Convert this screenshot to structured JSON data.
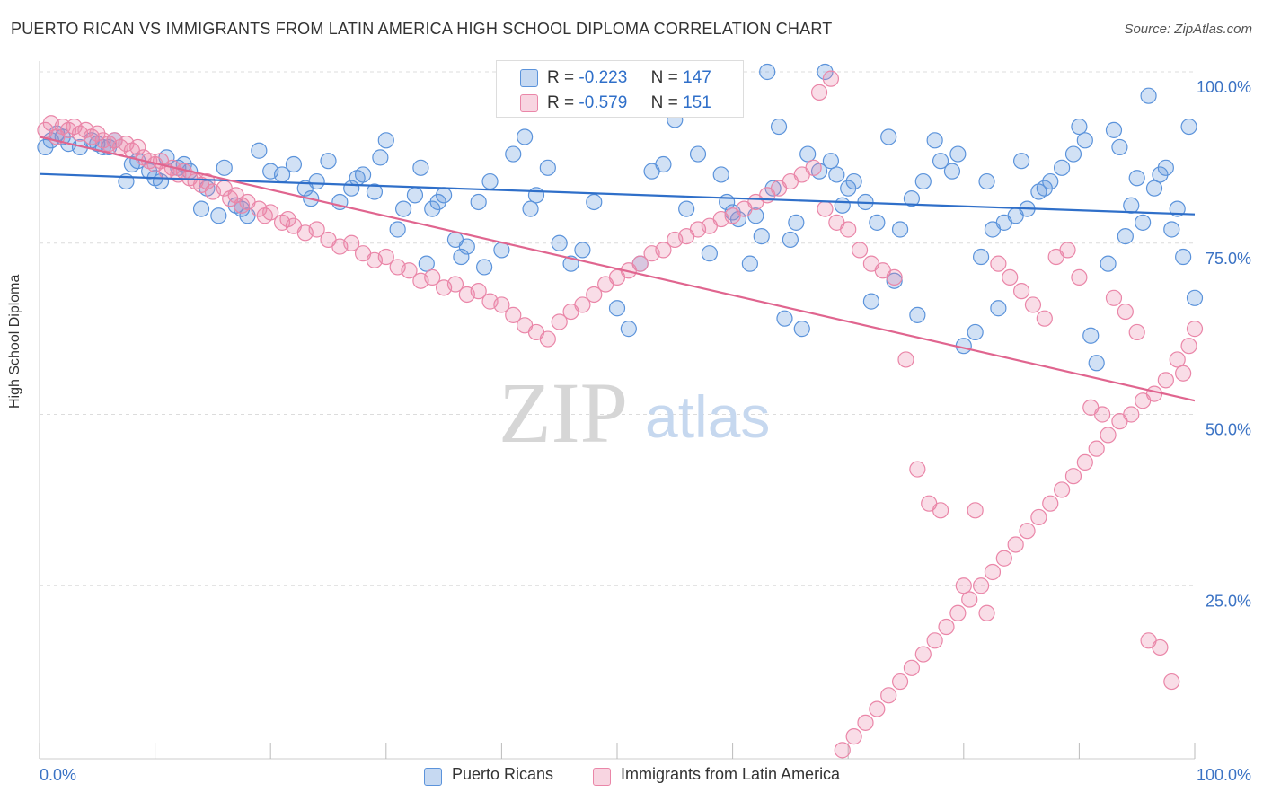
{
  "title": "PUERTO RICAN VS IMMIGRANTS FROM LATIN AMERICA HIGH SCHOOL DIPLOMA CORRELATION CHART",
  "source": "Source: ZipAtlas.com",
  "watermark_zip": "ZIP",
  "watermark_atlas": "atlas",
  "legend": {
    "r_label": "R =",
    "n_label": "N =",
    "blue_r": "-0.223",
    "blue_n": "147",
    "pink_r": "-0.579",
    "pink_n": "151"
  },
  "colors": {
    "blue": "#5b93db",
    "blue_line": "#2f6fc9",
    "pink": "#ea86a8",
    "pink_line": "#e0658f",
    "axis_text": "#3a72c4"
  },
  "chart_data": {
    "type": "scatter",
    "xlabel": "",
    "ylabel": "High School Diploma",
    "x_tick_left": "0.0%",
    "x_tick_right": "100.0%",
    "y_ticks": [
      "100.0%",
      "75.0%",
      "50.0%",
      "25.0%"
    ],
    "xlim": [
      0,
      1
    ],
    "ylim": [
      0,
      1
    ],
    "series": [
      {
        "name": "Puerto Ricans",
        "trend": [
          [
            0,
            0.851
          ],
          [
            1,
            0.792
          ]
        ],
        "points": [
          [
            0.005,
            0.89
          ],
          [
            0.01,
            0.9
          ],
          [
            0.015,
            0.91
          ],
          [
            0.02,
            0.905
          ],
          [
            0.025,
            0.895
          ],
          [
            0.035,
            0.89
          ],
          [
            0.045,
            0.9
          ],
          [
            0.05,
            0.895
          ],
          [
            0.055,
            0.89
          ],
          [
            0.06,
            0.89
          ],
          [
            0.065,
            0.9
          ],
          [
            0.075,
            0.84
          ],
          [
            0.08,
            0.865
          ],
          [
            0.085,
            0.87
          ],
          [
            0.095,
            0.855
          ],
          [
            0.1,
            0.845
          ],
          [
            0.105,
            0.84
          ],
          [
            0.11,
            0.875
          ],
          [
            0.12,
            0.86
          ],
          [
            0.125,
            0.865
          ],
          [
            0.13,
            0.855
          ],
          [
            0.14,
            0.8
          ],
          [
            0.145,
            0.83
          ],
          [
            0.155,
            0.79
          ],
          [
            0.16,
            0.86
          ],
          [
            0.17,
            0.805
          ],
          [
            0.175,
            0.8
          ],
          [
            0.18,
            0.79
          ],
          [
            0.19,
            0.885
          ],
          [
            0.2,
            0.855
          ],
          [
            0.21,
            0.85
          ],
          [
            0.22,
            0.865
          ],
          [
            0.23,
            0.83
          ],
          [
            0.235,
            0.815
          ],
          [
            0.24,
            0.84
          ],
          [
            0.25,
            0.87
          ],
          [
            0.26,
            0.81
          ],
          [
            0.27,
            0.83
          ],
          [
            0.275,
            0.845
          ],
          [
            0.28,
            0.85
          ],
          [
            0.29,
            0.825
          ],
          [
            0.295,
            0.875
          ],
          [
            0.3,
            0.9
          ],
          [
            0.31,
            0.77
          ],
          [
            0.315,
            0.8
          ],
          [
            0.325,
            0.82
          ],
          [
            0.33,
            0.86
          ],
          [
            0.335,
            0.72
          ],
          [
            0.34,
            0.8
          ],
          [
            0.345,
            0.81
          ],
          [
            0.35,
            0.82
          ],
          [
            0.36,
            0.755
          ],
          [
            0.365,
            0.73
          ],
          [
            0.37,
            0.745
          ],
          [
            0.38,
            0.81
          ],
          [
            0.385,
            0.715
          ],
          [
            0.39,
            0.84
          ],
          [
            0.4,
            0.74
          ],
          [
            0.41,
            0.88
          ],
          [
            0.42,
            0.905
          ],
          [
            0.425,
            0.8
          ],
          [
            0.43,
            0.82
          ],
          [
            0.44,
            0.86
          ],
          [
            0.445,
            1.0
          ],
          [
            0.45,
            0.75
          ],
          [
            0.46,
            0.72
          ],
          [
            0.47,
            0.74
          ],
          [
            0.48,
            0.81
          ],
          [
            0.5,
            0.655
          ],
          [
            0.51,
            0.625
          ],
          [
            0.52,
            0.72
          ],
          [
            0.53,
            0.855
          ],
          [
            0.54,
            0.865
          ],
          [
            0.55,
            0.93
          ],
          [
            0.56,
            0.8
          ],
          [
            0.57,
            0.88
          ],
          [
            0.58,
            0.735
          ],
          [
            0.59,
            0.85
          ],
          [
            0.6,
            0.795
          ],
          [
            0.62,
            0.79
          ],
          [
            0.63,
            1.0
          ],
          [
            0.64,
            0.92
          ],
          [
            0.65,
            0.755
          ],
          [
            0.66,
            0.625
          ],
          [
            0.68,
            1.0
          ],
          [
            0.69,
            0.85
          ],
          [
            0.7,
            0.83
          ],
          [
            0.72,
            0.665
          ],
          [
            0.74,
            0.695
          ],
          [
            0.76,
            0.645
          ],
          [
            0.78,
            0.87
          ],
          [
            0.79,
            0.855
          ],
          [
            0.8,
            0.6
          ],
          [
            0.82,
            0.84
          ],
          [
            0.83,
            0.655
          ],
          [
            0.85,
            0.87
          ],
          [
            0.87,
            0.83
          ],
          [
            0.9,
            0.92
          ],
          [
            0.91,
            0.615
          ],
          [
            0.93,
            0.915
          ],
          [
            0.94,
            0.76
          ],
          [
            0.95,
            0.845
          ],
          [
            0.96,
            0.965
          ],
          [
            0.97,
            0.85
          ],
          [
            0.98,
            0.77
          ],
          [
            0.99,
            0.73
          ],
          [
            1.0,
            0.67
          ],
          [
            0.995,
            0.92
          ],
          [
            0.985,
            0.8
          ],
          [
            0.975,
            0.86
          ],
          [
            0.965,
            0.83
          ],
          [
            0.955,
            0.78
          ],
          [
            0.945,
            0.805
          ],
          [
            0.935,
            0.89
          ],
          [
            0.925,
            0.72
          ],
          [
            0.915,
            0.575
          ],
          [
            0.905,
            0.9
          ],
          [
            0.895,
            0.88
          ],
          [
            0.885,
            0.86
          ],
          [
            0.875,
            0.84
          ],
          [
            0.865,
            0.825
          ],
          [
            0.855,
            0.8
          ],
          [
            0.845,
            0.79
          ],
          [
            0.835,
            0.78
          ],
          [
            0.825,
            0.77
          ],
          [
            0.815,
            0.73
          ],
          [
            0.81,
            0.62
          ],
          [
            0.795,
            0.88
          ],
          [
            0.775,
            0.9
          ],
          [
            0.765,
            0.84
          ],
          [
            0.755,
            0.815
          ],
          [
            0.745,
            0.77
          ],
          [
            0.735,
            0.905
          ],
          [
            0.725,
            0.78
          ],
          [
            0.715,
            0.81
          ],
          [
            0.705,
            0.84
          ],
          [
            0.695,
            0.805
          ],
          [
            0.685,
            0.87
          ],
          [
            0.675,
            0.855
          ],
          [
            0.665,
            0.88
          ],
          [
            0.655,
            0.78
          ],
          [
            0.645,
            0.64
          ],
          [
            0.635,
            0.83
          ],
          [
            0.625,
            0.76
          ],
          [
            0.615,
            0.72
          ],
          [
            0.605,
            0.785
          ],
          [
            0.595,
            0.81
          ]
        ]
      },
      {
        "name": "Immigrants from Latin America",
        "trend": [
          [
            0,
            0.905
          ],
          [
            1,
            0.52
          ]
        ],
        "points": [
          [
            0.005,
            0.915
          ],
          [
            0.01,
            0.925
          ],
          [
            0.015,
            0.905
          ],
          [
            0.02,
            0.92
          ],
          [
            0.025,
            0.915
          ],
          [
            0.03,
            0.92
          ],
          [
            0.035,
            0.91
          ],
          [
            0.04,
            0.915
          ],
          [
            0.045,
            0.905
          ],
          [
            0.05,
            0.91
          ],
          [
            0.055,
            0.9
          ],
          [
            0.06,
            0.895
          ],
          [
            0.065,
            0.9
          ],
          [
            0.07,
            0.89
          ],
          [
            0.075,
            0.895
          ],
          [
            0.08,
            0.885
          ],
          [
            0.085,
            0.89
          ],
          [
            0.09,
            0.875
          ],
          [
            0.095,
            0.87
          ],
          [
            0.1,
            0.865
          ],
          [
            0.105,
            0.87
          ],
          [
            0.11,
            0.855
          ],
          [
            0.115,
            0.86
          ],
          [
            0.12,
            0.85
          ],
          [
            0.125,
            0.855
          ],
          [
            0.13,
            0.845
          ],
          [
            0.135,
            0.84
          ],
          [
            0.14,
            0.835
          ],
          [
            0.145,
            0.84
          ],
          [
            0.15,
            0.825
          ],
          [
            0.16,
            0.83
          ],
          [
            0.165,
            0.815
          ],
          [
            0.17,
            0.82
          ],
          [
            0.175,
            0.805
          ],
          [
            0.18,
            0.81
          ],
          [
            0.19,
            0.8
          ],
          [
            0.195,
            0.79
          ],
          [
            0.2,
            0.795
          ],
          [
            0.21,
            0.78
          ],
          [
            0.215,
            0.785
          ],
          [
            0.22,
            0.775
          ],
          [
            0.23,
            0.765
          ],
          [
            0.24,
            0.77
          ],
          [
            0.25,
            0.755
          ],
          [
            0.26,
            0.745
          ],
          [
            0.27,
            0.75
          ],
          [
            0.28,
            0.735
          ],
          [
            0.29,
            0.725
          ],
          [
            0.3,
            0.73
          ],
          [
            0.31,
            0.715
          ],
          [
            0.32,
            0.71
          ],
          [
            0.33,
            0.695
          ],
          [
            0.34,
            0.7
          ],
          [
            0.35,
            0.685
          ],
          [
            0.36,
            0.69
          ],
          [
            0.37,
            0.675
          ],
          [
            0.38,
            0.68
          ],
          [
            0.39,
            0.665
          ],
          [
            0.4,
            0.66
          ],
          [
            0.41,
            0.645
          ],
          [
            0.42,
            0.63
          ],
          [
            0.43,
            0.62
          ],
          [
            0.44,
            0.61
          ],
          [
            0.45,
            0.635
          ],
          [
            0.46,
            0.65
          ],
          [
            0.47,
            0.66
          ],
          [
            0.48,
            0.675
          ],
          [
            0.49,
            0.69
          ],
          [
            0.5,
            0.7
          ],
          [
            0.51,
            0.71
          ],
          [
            0.52,
            0.72
          ],
          [
            0.53,
            0.735
          ],
          [
            0.54,
            0.74
          ],
          [
            0.55,
            0.755
          ],
          [
            0.56,
            0.76
          ],
          [
            0.57,
            0.77
          ],
          [
            0.58,
            0.775
          ],
          [
            0.59,
            0.785
          ],
          [
            0.6,
            0.79
          ],
          [
            0.61,
            0.8
          ],
          [
            0.62,
            0.81
          ],
          [
            0.63,
            0.82
          ],
          [
            0.64,
            0.83
          ],
          [
            0.65,
            0.84
          ],
          [
            0.66,
            0.85
          ],
          [
            0.67,
            0.86
          ],
          [
            0.68,
            0.8
          ],
          [
            0.69,
            0.78
          ],
          [
            0.7,
            0.77
          ],
          [
            0.71,
            0.74
          ],
          [
            0.72,
            0.72
          ],
          [
            0.73,
            0.71
          ],
          [
            0.74,
            0.7
          ],
          [
            0.75,
            0.58
          ],
          [
            0.76,
            0.42
          ],
          [
            0.77,
            0.37
          ],
          [
            0.78,
            0.36
          ],
          [
            0.8,
            0.25
          ],
          [
            0.81,
            0.36
          ],
          [
            0.82,
            0.21
          ],
          [
            0.83,
            0.72
          ],
          [
            0.84,
            0.7
          ],
          [
            0.85,
            0.68
          ],
          [
            0.86,
            0.66
          ],
          [
            0.87,
            0.64
          ],
          [
            0.88,
            0.73
          ],
          [
            0.89,
            0.74
          ],
          [
            0.9,
            0.7
          ],
          [
            0.91,
            0.51
          ],
          [
            0.92,
            0.5
          ],
          [
            0.93,
            0.67
          ],
          [
            0.94,
            0.65
          ],
          [
            0.95,
            0.62
          ],
          [
            0.96,
            0.17
          ],
          [
            0.97,
            0.16
          ],
          [
            0.98,
            0.11
          ],
          [
            0.99,
            0.56
          ],
          [
            1.0,
            0.625
          ],
          [
            0.995,
            0.6
          ],
          [
            0.985,
            0.58
          ],
          [
            0.975,
            0.55
          ],
          [
            0.965,
            0.53
          ],
          [
            0.955,
            0.52
          ],
          [
            0.945,
            0.5
          ],
          [
            0.935,
            0.49
          ],
          [
            0.925,
            0.47
          ],
          [
            0.915,
            0.45
          ],
          [
            0.905,
            0.43
          ],
          [
            0.895,
            0.41
          ],
          [
            0.885,
            0.39
          ],
          [
            0.875,
            0.37
          ],
          [
            0.865,
            0.35
          ],
          [
            0.855,
            0.33
          ],
          [
            0.845,
            0.31
          ],
          [
            0.835,
            0.29
          ],
          [
            0.825,
            0.27
          ],
          [
            0.815,
            0.25
          ],
          [
            0.805,
            0.23
          ],
          [
            0.795,
            0.21
          ],
          [
            0.785,
            0.19
          ],
          [
            0.775,
            0.17
          ],
          [
            0.765,
            0.15
          ],
          [
            0.755,
            0.13
          ],
          [
            0.745,
            0.11
          ],
          [
            0.735,
            0.09
          ],
          [
            0.725,
            0.07
          ],
          [
            0.715,
            0.05
          ],
          [
            0.705,
            0.03
          ],
          [
            0.695,
            0.01
          ],
          [
            0.685,
            0.99
          ],
          [
            0.675,
            0.97
          ]
        ]
      }
    ]
  }
}
